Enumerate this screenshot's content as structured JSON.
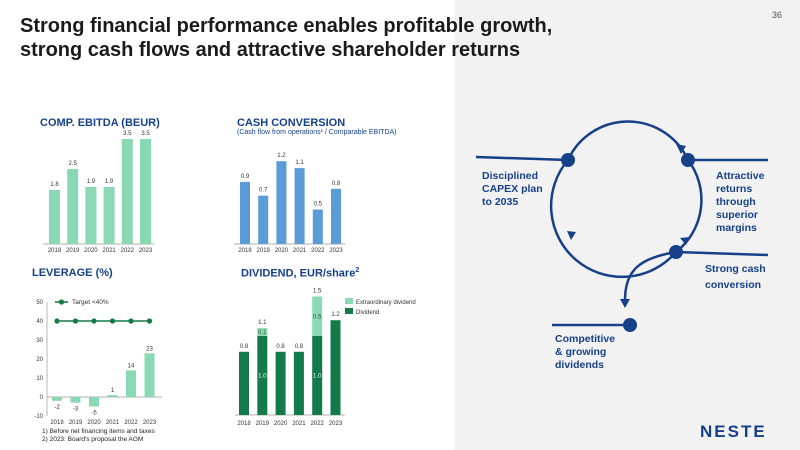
{
  "page_number": "36",
  "title_line1": "Strong financial performance enables profitable growth,",
  "title_line2": "strong cash flows and attractive shareholder returns",
  "footnote1": "1) Before net financing items and taxes",
  "footnote2": "2) 2023: Board's proposal the AGM",
  "logo_text": "NESTE",
  "cycle": {
    "left": [
      "Disciplined",
      "CAPEX plan",
      "to 2035"
    ],
    "right": [
      "Attractive",
      "returns",
      "through",
      "superior",
      "margins"
    ],
    "bottom_right": [
      "Strong cash",
      "conversion"
    ],
    "bottom_left": [
      "Competitive",
      "& growing",
      "dividends"
    ]
  },
  "colors": {
    "navy": "#16408a",
    "mint": "#8ad9b4",
    "blue": "#5a9bd8",
    "dark_green": "#137a4a",
    "light_green": "#8ad9b4",
    "target_green": "#157a48"
  },
  "chart_data": [
    {
      "type": "bar",
      "title": "COMP. EBITDA (BEUR)",
      "categories": [
        "2018",
        "2019",
        "2020",
        "2021",
        "2022",
        "2023"
      ],
      "values": [
        1.8,
        2.5,
        1.9,
        1.9,
        3.5,
        3.5
      ],
      "labels": [
        "1.8",
        "2.5",
        "1.9",
        "1.9",
        "3.5",
        "3.5"
      ],
      "ylim": [
        0,
        3.7
      ]
    },
    {
      "type": "bar",
      "title": "CASH CONVERSION",
      "subtitle": "(Cash flow from operations¹ / Comparable EBITDA)",
      "categories": [
        "2018",
        "2019",
        "2020",
        "2021",
        "2022",
        "2023"
      ],
      "values": [
        0.9,
        0.7,
        1.2,
        1.1,
        0.5,
        0.8
      ],
      "labels": [
        "0.9",
        "0.7",
        "1.2",
        "1.1",
        "0.5",
        "0.8"
      ],
      "ylim": [
        0,
        1.3
      ]
    },
    {
      "type": "bar",
      "title": "LEVERAGE (%)",
      "categories": [
        "2018",
        "2019",
        "2020",
        "2021",
        "2022",
        "2023"
      ],
      "values": [
        -2,
        -3,
        -5,
        1,
        14,
        23
      ],
      "labels": [
        "-2",
        "-3",
        "-5",
        "1",
        "14",
        "23"
      ],
      "ylim": [
        -10,
        50
      ],
      "yticks": [
        "50",
        "40",
        "30",
        "20",
        "10",
        "0",
        "-10"
      ],
      "target": {
        "name": "Target <40%",
        "value": 40
      }
    },
    {
      "type": "bar",
      "title": "DIVIDEND, EUR/share",
      "title_sup": "2",
      "categories": [
        "2018",
        "2019",
        "2020",
        "2021",
        "2022",
        "2023"
      ],
      "series": [
        {
          "name": "Dividend",
          "values": [
            0.8,
            1.0,
            0.8,
            0.8,
            1.0,
            1.2
          ],
          "labels": [
            "",
            "1.0",
            "",
            "",
            "1.0",
            ""
          ]
        },
        {
          "name": "Extraordinary dividend",
          "values": [
            0,
            0.1,
            0,
            0,
            0.5,
            0
          ],
          "labels": [
            "",
            "0.1",
            "",
            "",
            "0.5",
            ""
          ]
        }
      ],
      "totals": [
        "0.8",
        "1.1",
        "0.8",
        "0.8",
        "1.5",
        "1.2"
      ],
      "ylim": [
        0,
        1.55
      ]
    }
  ]
}
